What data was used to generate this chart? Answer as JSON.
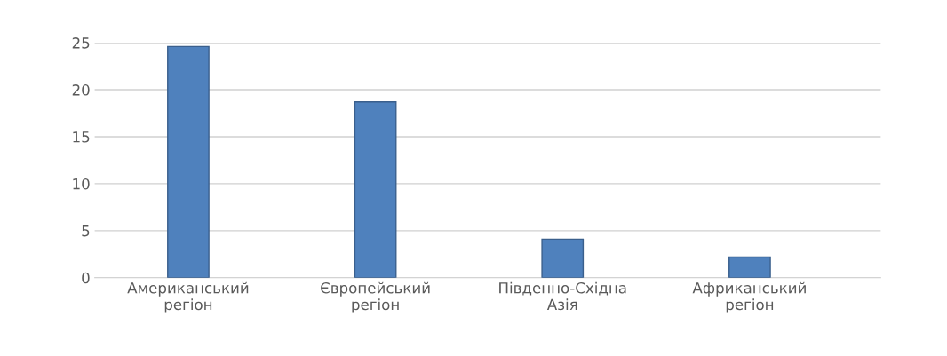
{
  "chart_data": {
    "type": "bar",
    "categories": [
      "Американський\nрегіон",
      "Європейський\nрегіон",
      "Південно-Східна\nАзія",
      "Африканський\nрегіон"
    ],
    "values": [
      24.6,
      18.7,
      4.1,
      2.2
    ],
    "color": "#4f81bd",
    "ylim": [
      0,
      25
    ],
    "yticks": [
      0,
      5,
      10,
      15,
      20,
      25
    ],
    "grid": "y"
  }
}
